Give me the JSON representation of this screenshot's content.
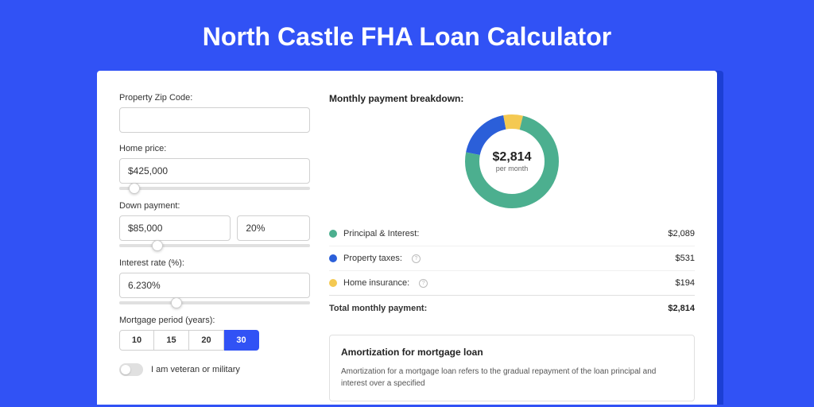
{
  "page": {
    "title": "North Castle FHA Loan Calculator",
    "background_color": "#3152f5",
    "card_shadow_color": "#1c3fd4"
  },
  "form": {
    "zip": {
      "label": "Property Zip Code:",
      "value": ""
    },
    "home_price": {
      "label": "Home price:",
      "value": "$425,000",
      "slider_pct": 8
    },
    "down_payment": {
      "label": "Down payment:",
      "amount": "$85,000",
      "pct": "20%",
      "slider_pct": 20
    },
    "interest": {
      "label": "Interest rate (%):",
      "value": "6.230%",
      "slider_pct": 30
    },
    "period": {
      "label": "Mortgage period (years):",
      "options": [
        "10",
        "15",
        "20",
        "30"
      ],
      "selected": 3
    },
    "veteran": {
      "label": "I am veteran or military",
      "checked": false
    }
  },
  "breakdown": {
    "title": "Monthly payment breakdown:",
    "total_amount": "$2,814",
    "total_sub": "per month",
    "items": [
      {
        "label": "Principal & Interest:",
        "value": "$2,089",
        "color": "#4caf8f",
        "pct": 74.2,
        "info": false
      },
      {
        "label": "Property taxes:",
        "value": "$531",
        "color": "#2b5fd9",
        "pct": 18.9,
        "info": true
      },
      {
        "label": "Home insurance:",
        "value": "$194",
        "color": "#f4c952",
        "pct": 6.9,
        "info": true
      }
    ],
    "total_row": {
      "label": "Total monthly payment:",
      "value": "$2,814"
    }
  },
  "amortization": {
    "title": "Amortization for mortgage loan",
    "text": "Amortization for a mortgage loan refers to the gradual repayment of the loan principal and interest over a specified"
  },
  "chart_style": {
    "stroke_width": 18,
    "radius": 50,
    "bg": "#ffffff"
  }
}
